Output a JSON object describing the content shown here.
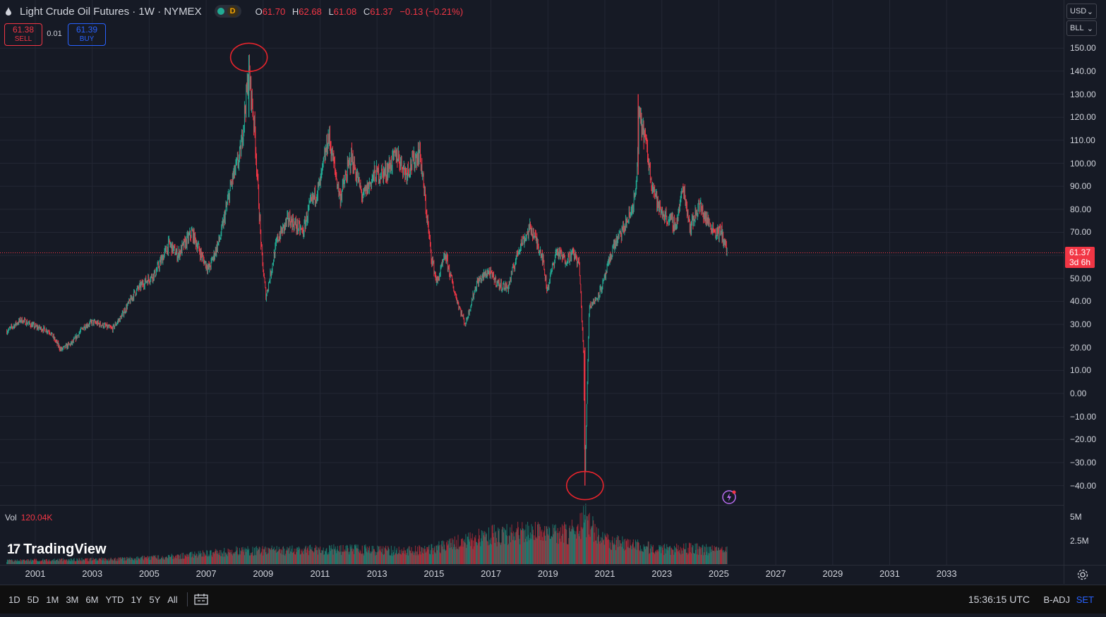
{
  "header": {
    "title": "Light Crude Oil Futures · 1W · NYMEX",
    "symbol_icon": "oil-drop-icon",
    "market_status_badge": "D",
    "ohlc": {
      "o_label": "O",
      "o": "61.70",
      "h_label": "H",
      "h": "62.68",
      "l_label": "L",
      "l": "61.08",
      "c_label": "C",
      "c": "61.37",
      "change": "−0.13 (−0.21%)"
    }
  },
  "trade": {
    "sell_price": "61.38",
    "sell_label": "SELL",
    "spread": "0.01",
    "buy_price": "61.39",
    "buy_label": "BUY"
  },
  "right_controls": {
    "currency": "USD",
    "unit": "BLL"
  },
  "price_axis": {
    "labels": [
      "150.00",
      "140.00",
      "130.00",
      "120.00",
      "110.00",
      "100.00",
      "90.00",
      "80.00",
      "70.00",
      "50.00",
      "40.00",
      "30.00",
      "20.00",
      "10.00",
      "0.00",
      "−10.00",
      "−20.00",
      "−30.00",
      "−40.00"
    ],
    "last_price": "61.37",
    "countdown": "3d 6h"
  },
  "time_axis": {
    "labels": [
      "2001",
      "2003",
      "2005",
      "2007",
      "2009",
      "2011",
      "2013",
      "2015",
      "2017",
      "2019",
      "2021",
      "2023",
      "2025",
      "2027",
      "2029",
      "2031",
      "2033"
    ]
  },
  "volume": {
    "label": "Vol",
    "value": "120.04K",
    "axis_labels": [
      "5M",
      "2.5M"
    ]
  },
  "branding": {
    "logo_text": "TradingView",
    "logo_mark": "17"
  },
  "bottom_bar": {
    "periods": [
      "1D",
      "5D",
      "1M",
      "3M",
      "6M",
      "YTD",
      "1Y",
      "5Y",
      "All"
    ],
    "clock": "15:36:15 UTC",
    "adjustment": "B-ADJ",
    "session": "SET"
  },
  "colors": {
    "up": "#22ab94",
    "down": "#f23645",
    "background": "#161a25",
    "grid": "#232734",
    "annotation": "#e8242c"
  },
  "chart_data": {
    "type": "line",
    "title": "Light Crude Oil Futures · 1W · NYMEX",
    "xlabel": "",
    "ylabel": "",
    "ylim": [
      -47,
      158
    ],
    "xlim": [
      2000.0,
      2035.0
    ],
    "y_unit": "USD/BLL",
    "grid": true,
    "series": [
      {
        "x": [
          2000.0,
          2000.5,
          2001.0,
          2001.5,
          2001.9,
          2002.3,
          2002.7,
          2003.0,
          2003.3,
          2003.7,
          2004.0,
          2004.5,
          2004.8,
          2005.2,
          2005.7,
          2006.0,
          2006.5,
          2006.9,
          2007.1,
          2007.5,
          2007.9,
          2008.2,
          2008.5,
          2008.7,
          2008.95,
          2009.1,
          2009.5,
          2009.9,
          2010.4,
          2010.6,
          2011.0,
          2011.3,
          2011.7,
          2012.1,
          2012.5,
          2012.9,
          2013.3,
          2013.7,
          2014.0,
          2014.5,
          2014.9,
          2015.1,
          2015.4,
          2015.7,
          2015.9,
          2016.1,
          2016.5,
          2016.9,
          2017.3,
          2017.6,
          2018.0,
          2018.4,
          2018.8,
          2018.97,
          2019.3,
          2019.6,
          2019.9,
          2020.1,
          2020.25,
          2020.3,
          2020.45,
          2020.7,
          2020.95,
          2021.3,
          2021.6,
          2021.9,
          2022.1,
          2022.2,
          2022.4,
          2022.6,
          2022.9,
          2023.2,
          2023.5,
          2023.75,
          2024.0,
          2024.3,
          2024.6,
          2024.9,
          2025.1,
          2025.3
        ],
        "values": [
          27,
          32,
          29,
          27,
          19,
          22,
          29,
          31,
          30,
          28,
          33,
          44,
          48,
          52,
          65,
          60,
          70,
          58,
          54,
          68,
          92,
          104,
          140,
          115,
          60,
          42,
          67,
          76,
          70,
          80,
          91,
          112,
          85,
          103,
          85,
          95,
          96,
          104,
          96,
          105,
          60,
          48,
          60,
          45,
          37,
          30,
          48,
          53,
          47,
          46,
          64,
          72,
          60,
          45,
          62,
          58,
          61,
          56,
          18,
          -37,
          38,
          41,
          48,
          64,
          70,
          78,
          88,
          120,
          112,
          95,
          80,
          76,
          73,
          90,
          72,
          82,
          75,
          70,
          70,
          61
        ]
      }
    ],
    "volume_series": {
      "axis_labels": [
        "5M",
        "2.5M"
      ],
      "last_value": "120.04K",
      "x": [
        2000,
        2004,
        2006,
        2008,
        2010,
        2012,
        2014,
        2015,
        2016,
        2017,
        2018,
        2019,
        2020,
        2020.3,
        2021,
        2022,
        2023,
        2024,
        2025.3
      ],
      "values": [
        0.4,
        0.6,
        0.9,
        1.5,
        1.6,
        1.7,
        1.5,
        1.8,
        2.6,
        3.3,
        3.6,
        3.5,
        3.8,
        5.2,
        2.6,
        2.2,
        1.7,
        1.8,
        1.5
      ]
    },
    "annotations": [
      {
        "type": "circle",
        "label": "",
        "x": 2008.5,
        "y": 146
      },
      {
        "type": "circle",
        "label": "",
        "x": 2020.3,
        "y": -40
      }
    ]
  }
}
